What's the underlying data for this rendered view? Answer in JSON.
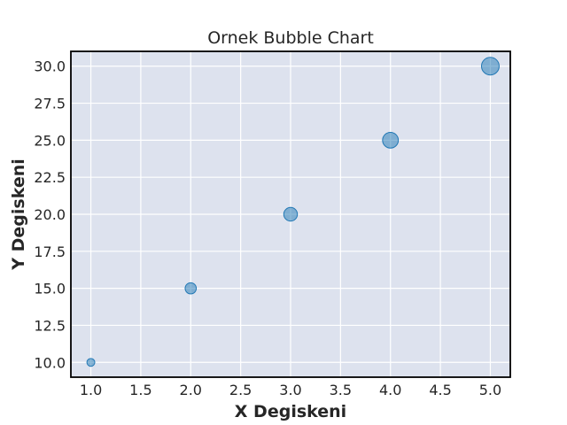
{
  "chart_data": {
    "type": "scatter",
    "title": "Ornek Bubble Chart",
    "xlabel": "X Degiskeni",
    "ylabel": "Y Degiskeni",
    "x": [
      1,
      2,
      3,
      4,
      5
    ],
    "y": [
      10,
      15,
      20,
      25,
      30
    ],
    "sizes": [
      50,
      100,
      150,
      200,
      250
    ],
    "xlim": [
      0.8,
      5.2
    ],
    "ylim": [
      9,
      31
    ],
    "xticks": [
      1.0,
      1.5,
      2.0,
      2.5,
      3.0,
      3.5,
      4.0,
      4.5,
      5.0
    ],
    "yticks": [
      10.0,
      12.5,
      15.0,
      17.5,
      20.0,
      22.5,
      25.0,
      27.5,
      30.0
    ],
    "xtick_labels": [
      "1.0",
      "1.5",
      "2.0",
      "2.5",
      "3.0",
      "3.5",
      "4.0",
      "4.5",
      "5.0"
    ],
    "ytick_labels": [
      "10.0",
      "12.5",
      "15.0",
      "17.5",
      "20.0",
      "22.5",
      "25.0",
      "27.5",
      "30.0"
    ],
    "grid": true,
    "color": "#1f77b4",
    "background": "#dde2ee"
  }
}
